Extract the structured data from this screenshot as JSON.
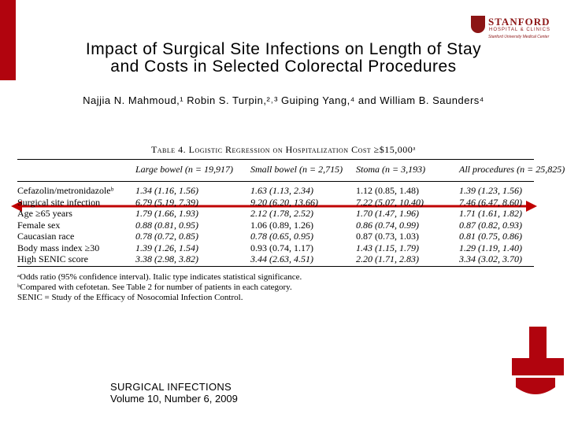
{
  "logo": {
    "name": "STANFORD",
    "sub": "HOSPITAL & CLINICS",
    "tagline": "Stanford University Medical Center"
  },
  "title": [
    "Impact of Surgical Site Infections on Length of Stay",
    "and Costs in Selected Colorectal Procedures"
  ],
  "authors": "Najjia N. Mahmoud,¹ Robin S. Turpin,²˒³ Guiping Yang,⁴ and William B. Saunders⁴",
  "table": {
    "caption": "Table 4. Logistic Regression on Hospitalization Cost ≥$15,000ᵃ",
    "header": [
      "Large bowel (n = 19,917)",
      "Small bowel (n = 2,715)",
      "Stoma (n = 3,193)",
      "All procedures (n = 25,825)"
    ],
    "rows": [
      [
        "Cefazolin/metronidazoleᵇ",
        "1.34 (1.16, 1.56)",
        "1.63 (1.13, 2.34)",
        "1.12 (0.85, 1.48)",
        "1.39 (1.23, 1.56)"
      ],
      [
        "Surgical site infection",
        "6.79 (5.19, 7.39)",
        "9.20 (6.20, 13.66)",
        "7.22 (5.07, 10.40)",
        "7.46 (6.47, 8.60)"
      ],
      [
        "Age ≥65 years",
        "1.79 (1.66, 1.93)",
        "2.12 (1.78, 2.52)",
        "1.70 (1.47, 1.96)",
        "1.71 (1.61, 1.82)"
      ],
      [
        "Female sex",
        "0.88 (0.81, 0.95)",
        "1.06 (0.89, 1.26)",
        "0.86 (0.74, 0.99)",
        "0.87 (0.82, 0.93)"
      ],
      [
        "Caucasian race",
        "0.78 (0.72, 0.85)",
        "0.78 (0.65, 0.95)",
        "0.87 (0.73, 1.03)",
        "0.81 (0.75, 0.86)"
      ],
      [
        "Body mass index ≥30",
        "1.39 (1.26, 1.54)",
        "0.93 (0.74, 1.17)",
        "1.43 (1.15, 1.79)",
        "1.29 (1.19, 1.40)"
      ],
      [
        "High SENIC score",
        "3.38 (2.98, 3.82)",
        "3.44 (2.63, 4.51)",
        "2.20 (1.71, 2.83)",
        "3.34 (3.02, 3.70)"
      ]
    ],
    "footnotes": [
      "ᵃOdds ratio (95% confidence interval). Italic type indicates statistical significance.",
      "ᵇCompared with cefotetan. See Table 2 for number of patients in each category.",
      "SENIC = Study of the Efficacy of Nosocomial Infection Control."
    ]
  },
  "journal": {
    "name": "SURGICAL INFECTIONS",
    "issue": "Volume 10, Number 6, 2009"
  }
}
